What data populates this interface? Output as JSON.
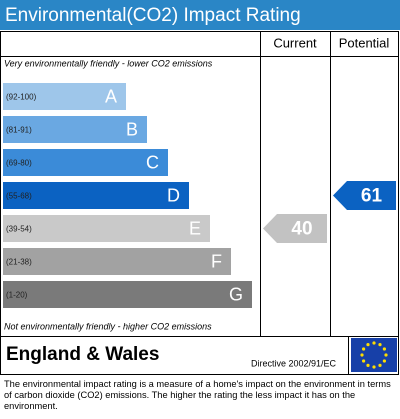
{
  "header": {
    "title": "Environmental(CO2) Impact Rating"
  },
  "columns": {
    "current": "Current",
    "potential": "Potential"
  },
  "top_note": "Very environmentally friendly - lower CO2 emissions",
  "bottom_note": "Not environmentally friendly - higher CO2 emissions",
  "bands": [
    {
      "range": "(92-100)",
      "letter": "A",
      "color": "#9ec6ea"
    },
    {
      "range": "(81-91)",
      "letter": "B",
      "color": "#6aa8e2"
    },
    {
      "range": "(69-80)",
      "letter": "C",
      "color": "#3b8bd8"
    },
    {
      "range": "(55-68)",
      "letter": "D",
      "color": "#0b62c2"
    },
    {
      "range": "(39-54)",
      "letter": "E",
      "color": "#c9c9c9"
    },
    {
      "range": "(21-38)",
      "letter": "F",
      "color": "#a2a2a2"
    },
    {
      "range": "(1-20)",
      "letter": "G",
      "color": "#7a7a7a"
    }
  ],
  "current": {
    "value": 40,
    "color": "#c2c2c2"
  },
  "potential": {
    "value": 61,
    "color": "#0b62c2"
  },
  "region": "England & Wales",
  "directive": "Directive 2002/91/EC",
  "description": "The environmental impact rating is a measure of a home's impact on the environment in terms of carbon dioxide (CO2) emissions. The higher the rating the less impact it has on the environment."
}
